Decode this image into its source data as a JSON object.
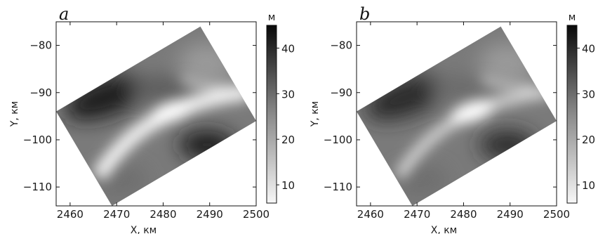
{
  "chart_data": [
    {
      "type": "heatmap",
      "panel_label": "a",
      "xlabel": "X, км",
      "ylabel": "Y, км",
      "xlim": [
        2457,
        2500
      ],
      "ylim": [
        -114,
        -75
      ],
      "xticks": [
        2460,
        2470,
        2480,
        2490,
        2500
      ],
      "yticks": [
        -80,
        -90,
        -100,
        -110
      ],
      "colorbar": {
        "unit": "м",
        "range": [
          6,
          45
        ],
        "ticks": [
          10,
          20,
          30,
          40
        ],
        "colormap": "gray_r"
      },
      "region_corners": [
        [
          2457,
          -94
        ],
        [
          2488,
          -76
        ],
        [
          2500,
          -96
        ],
        [
          2469,
          -114
        ]
      ]
    },
    {
      "type": "heatmap",
      "panel_label": "b",
      "xlabel": "X, км",
      "ylabel": "Y, км",
      "xlim": [
        2457,
        2500
      ],
      "ylim": [
        -114,
        -75
      ],
      "xticks": [
        2460,
        2470,
        2480,
        2490,
        2500
      ],
      "yticks": [
        -80,
        -90,
        -100,
        -110
      ],
      "colorbar": {
        "unit": "м",
        "range": [
          6,
          45
        ],
        "ticks": [
          10,
          20,
          30,
          40
        ],
        "colormap": "gray_r"
      },
      "region_corners": [
        [
          2457,
          -94
        ],
        [
          2488,
          -76
        ],
        [
          2500,
          -96
        ],
        [
          2469,
          -114
        ]
      ]
    }
  ]
}
